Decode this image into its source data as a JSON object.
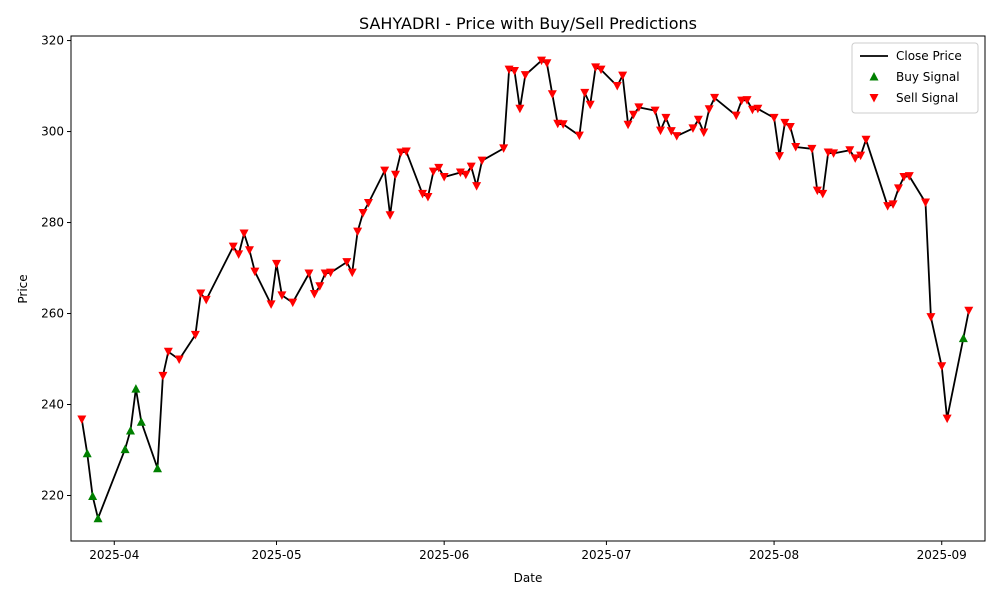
{
  "chart_data": {
    "type": "line",
    "title": "SAHYADRI - Price with Buy/Sell Predictions",
    "xlabel": "Date",
    "ylabel": "Price",
    "xlim": [
      "2025-03-24",
      "2025-09-09"
    ],
    "ylim": [
      210,
      321
    ],
    "x_ticks": [
      "2025-04-01",
      "2025-05-01",
      "2025-06-01",
      "2025-07-01",
      "2025-08-01",
      "2025-09-01"
    ],
    "x_tick_labels": [
      "2025-04",
      "2025-05",
      "2025-06",
      "2025-07",
      "2025-08",
      "2025-09"
    ],
    "y_ticks": [
      220,
      240,
      260,
      280,
      300,
      320
    ],
    "grid": false,
    "legend_position": "top-right",
    "legend": [
      "Close Price",
      "Buy Signal",
      "Sell Signal"
    ],
    "colors": {
      "line": "#000000",
      "buy": "#008000",
      "sell": "#ff0000"
    },
    "series": [
      {
        "name": "Close Price",
        "kind": "line",
        "points": [
          [
            "2025-03-26",
            236.7
          ],
          [
            "2025-03-27",
            229.3
          ],
          [
            "2025-03-28",
            219.9
          ],
          [
            "2025-03-29",
            215.0
          ],
          [
            "2025-04-03",
            230.2
          ],
          [
            "2025-04-04",
            234.3
          ],
          [
            "2025-04-05",
            243.5
          ],
          [
            "2025-04-06",
            236.2
          ],
          [
            "2025-04-09",
            226.0
          ],
          [
            "2025-04-10",
            246.3
          ],
          [
            "2025-04-11",
            251.6
          ],
          [
            "2025-04-13",
            249.9
          ],
          [
            "2025-04-16",
            255.3
          ],
          [
            "2025-04-17",
            264.4
          ],
          [
            "2025-04-18",
            263.0
          ],
          [
            "2025-04-23",
            274.7
          ],
          [
            "2025-04-24",
            273.0
          ],
          [
            "2025-04-25",
            277.6
          ],
          [
            "2025-04-26",
            273.9
          ],
          [
            "2025-04-27",
            269.2
          ],
          [
            "2025-04-30",
            262.0
          ],
          [
            "2025-05-01",
            270.9
          ],
          [
            "2025-05-02",
            264.0
          ],
          [
            "2025-05-04",
            262.4
          ],
          [
            "2025-05-07",
            268.8
          ],
          [
            "2025-05-08",
            264.3
          ],
          [
            "2025-05-09",
            266.0
          ],
          [
            "2025-05-10",
            268.8
          ],
          [
            "2025-05-11",
            269.0
          ],
          [
            "2025-05-14",
            271.3
          ],
          [
            "2025-05-15",
            269.0
          ],
          [
            "2025-05-16",
            278.0
          ],
          [
            "2025-05-17",
            282.1
          ],
          [
            "2025-05-18",
            284.3
          ],
          [
            "2025-05-21",
            291.4
          ],
          [
            "2025-05-22",
            281.6
          ],
          [
            "2025-05-23",
            290.5
          ],
          [
            "2025-05-24",
            295.4
          ],
          [
            "2025-05-25",
            295.6
          ],
          [
            "2025-05-28",
            286.3
          ],
          [
            "2025-05-29",
            285.6
          ],
          [
            "2025-05-30",
            291.2
          ],
          [
            "2025-05-31",
            292.0
          ],
          [
            "2025-06-01",
            290.0
          ],
          [
            "2025-06-04",
            291.0
          ],
          [
            "2025-06-05",
            290.5
          ],
          [
            "2025-06-06",
            292.3
          ],
          [
            "2025-06-07",
            288.0
          ],
          [
            "2025-06-08",
            293.6
          ],
          [
            "2025-06-12",
            296.3
          ],
          [
            "2025-06-13",
            313.6
          ],
          [
            "2025-06-14",
            313.3
          ],
          [
            "2025-06-15",
            305.0
          ],
          [
            "2025-06-16",
            312.4
          ],
          [
            "2025-06-19",
            315.6
          ],
          [
            "2025-06-20",
            315.0
          ],
          [
            "2025-06-21",
            308.2
          ],
          [
            "2025-06-22",
            301.7
          ],
          [
            "2025-06-23",
            301.6
          ],
          [
            "2025-06-26",
            299.1
          ],
          [
            "2025-06-27",
            308.5
          ],
          [
            "2025-06-28",
            305.9
          ],
          [
            "2025-06-29",
            314.1
          ],
          [
            "2025-06-30",
            313.6
          ],
          [
            "2025-07-03",
            310.0
          ],
          [
            "2025-07-04",
            312.3
          ],
          [
            "2025-07-05",
            301.5
          ],
          [
            "2025-07-06",
            303.7
          ],
          [
            "2025-07-07",
            305.3
          ],
          [
            "2025-07-10",
            304.6
          ],
          [
            "2025-07-11",
            300.2
          ],
          [
            "2025-07-12",
            303.0
          ],
          [
            "2025-07-13",
            300.1
          ],
          [
            "2025-07-14",
            299.0
          ],
          [
            "2025-07-17",
            300.7
          ],
          [
            "2025-07-18",
            302.6
          ],
          [
            "2025-07-19",
            299.8
          ],
          [
            "2025-07-20",
            304.9
          ],
          [
            "2025-07-21",
            307.4
          ],
          [
            "2025-07-25",
            303.5
          ],
          [
            "2025-07-26",
            306.8
          ],
          [
            "2025-07-27",
            306.9
          ],
          [
            "2025-07-28",
            304.8
          ],
          [
            "2025-07-29",
            305.0
          ],
          [
            "2025-08-01",
            303.0
          ],
          [
            "2025-08-02",
            294.6
          ],
          [
            "2025-08-03",
            301.9
          ],
          [
            "2025-08-04",
            301.0
          ],
          [
            "2025-08-05",
            296.6
          ],
          [
            "2025-08-08",
            296.2
          ],
          [
            "2025-08-09",
            287.0
          ],
          [
            "2025-08-10",
            286.3
          ],
          [
            "2025-08-11",
            295.4
          ],
          [
            "2025-08-12",
            295.2
          ],
          [
            "2025-08-15",
            295.9
          ],
          [
            "2025-08-16",
            294.1
          ],
          [
            "2025-08-17",
            294.7
          ],
          [
            "2025-08-18",
            298.2
          ],
          [
            "2025-08-22",
            283.6
          ],
          [
            "2025-08-23",
            284.0
          ],
          [
            "2025-08-24",
            287.5
          ],
          [
            "2025-08-25",
            290.0
          ],
          [
            "2025-08-26",
            290.2
          ],
          [
            "2025-08-29",
            284.4
          ],
          [
            "2025-08-30",
            259.2
          ],
          [
            "2025-09-01",
            248.4
          ],
          [
            "2025-09-02",
            236.9
          ],
          [
            "2025-09-05",
            254.6
          ],
          [
            "2025-09-06",
            260.6
          ]
        ]
      },
      {
        "name": "Buy Signal",
        "kind": "scatter",
        "marker": "triangle-up",
        "points": [
          [
            "2025-03-27",
            229.3
          ],
          [
            "2025-03-28",
            219.9
          ],
          [
            "2025-03-29",
            215.0
          ],
          [
            "2025-04-03",
            230.2
          ],
          [
            "2025-04-04",
            234.3
          ],
          [
            "2025-04-05",
            243.5
          ],
          [
            "2025-04-06",
            236.2
          ],
          [
            "2025-04-09",
            226.0
          ],
          [
            "2025-09-05",
            254.6
          ]
        ]
      },
      {
        "name": "Sell Signal",
        "kind": "scatter",
        "marker": "triangle-down",
        "points": [
          [
            "2025-03-26",
            236.7
          ],
          [
            "2025-04-10",
            246.3
          ],
          [
            "2025-04-11",
            251.6
          ],
          [
            "2025-04-13",
            249.9
          ],
          [
            "2025-04-16",
            255.3
          ],
          [
            "2025-04-17",
            264.4
          ],
          [
            "2025-04-18",
            263.0
          ],
          [
            "2025-04-23",
            274.7
          ],
          [
            "2025-04-24",
            273.0
          ],
          [
            "2025-04-25",
            277.6
          ],
          [
            "2025-04-26",
            273.9
          ],
          [
            "2025-04-27",
            269.2
          ],
          [
            "2025-04-30",
            262.0
          ],
          [
            "2025-05-01",
            270.9
          ],
          [
            "2025-05-02",
            264.0
          ],
          [
            "2025-05-04",
            262.4
          ],
          [
            "2025-05-07",
            268.8
          ],
          [
            "2025-05-08",
            264.3
          ],
          [
            "2025-05-09",
            266.0
          ],
          [
            "2025-05-10",
            268.8
          ],
          [
            "2025-05-11",
            269.0
          ],
          [
            "2025-05-14",
            271.3
          ],
          [
            "2025-05-15",
            269.0
          ],
          [
            "2025-05-16",
            278.0
          ],
          [
            "2025-05-17",
            282.1
          ],
          [
            "2025-05-18",
            284.3
          ],
          [
            "2025-05-21",
            291.4
          ],
          [
            "2025-05-22",
            281.6
          ],
          [
            "2025-05-23",
            290.5
          ],
          [
            "2025-05-24",
            295.4
          ],
          [
            "2025-05-25",
            295.6
          ],
          [
            "2025-05-28",
            286.3
          ],
          [
            "2025-05-29",
            285.6
          ],
          [
            "2025-05-30",
            291.2
          ],
          [
            "2025-05-31",
            292.0
          ],
          [
            "2025-06-01",
            290.0
          ],
          [
            "2025-06-04",
            291.0
          ],
          [
            "2025-06-05",
            290.5
          ],
          [
            "2025-06-06",
            292.3
          ],
          [
            "2025-06-07",
            288.0
          ],
          [
            "2025-06-08",
            293.6
          ],
          [
            "2025-06-12",
            296.3
          ],
          [
            "2025-06-13",
            313.6
          ],
          [
            "2025-06-14",
            313.3
          ],
          [
            "2025-06-15",
            305.0
          ],
          [
            "2025-06-16",
            312.4
          ],
          [
            "2025-06-19",
            315.6
          ],
          [
            "2025-06-20",
            315.0
          ],
          [
            "2025-06-21",
            308.2
          ],
          [
            "2025-06-22",
            301.7
          ],
          [
            "2025-06-23",
            301.6
          ],
          [
            "2025-06-26",
            299.1
          ],
          [
            "2025-06-27",
            308.5
          ],
          [
            "2025-06-28",
            305.9
          ],
          [
            "2025-06-29",
            314.1
          ],
          [
            "2025-06-30",
            313.6
          ],
          [
            "2025-07-03",
            310.0
          ],
          [
            "2025-07-04",
            312.3
          ],
          [
            "2025-07-05",
            301.5
          ],
          [
            "2025-07-06",
            303.7
          ],
          [
            "2025-07-07",
            305.3
          ],
          [
            "2025-07-10",
            304.6
          ],
          [
            "2025-07-11",
            300.2
          ],
          [
            "2025-07-12",
            303.0
          ],
          [
            "2025-07-13",
            300.1
          ],
          [
            "2025-07-14",
            299.0
          ],
          [
            "2025-07-17",
            300.7
          ],
          [
            "2025-07-18",
            302.6
          ],
          [
            "2025-07-19",
            299.8
          ],
          [
            "2025-07-20",
            304.9
          ],
          [
            "2025-07-21",
            307.4
          ],
          [
            "2025-07-25",
            303.5
          ],
          [
            "2025-07-26",
            306.8
          ],
          [
            "2025-07-27",
            306.9
          ],
          [
            "2025-07-28",
            304.8
          ],
          [
            "2025-07-29",
            305.0
          ],
          [
            "2025-08-01",
            303.0
          ],
          [
            "2025-08-02",
            294.6
          ],
          [
            "2025-08-03",
            301.9
          ],
          [
            "2025-08-04",
            301.0
          ],
          [
            "2025-08-05",
            296.6
          ],
          [
            "2025-08-08",
            296.2
          ],
          [
            "2025-08-09",
            287.0
          ],
          [
            "2025-08-10",
            286.3
          ],
          [
            "2025-08-11",
            295.4
          ],
          [
            "2025-08-12",
            295.2
          ],
          [
            "2025-08-15",
            295.9
          ],
          [
            "2025-08-16",
            294.1
          ],
          [
            "2025-08-17",
            294.7
          ],
          [
            "2025-08-18",
            298.2
          ],
          [
            "2025-08-22",
            283.6
          ],
          [
            "2025-08-23",
            284.0
          ],
          [
            "2025-08-24",
            287.5
          ],
          [
            "2025-08-25",
            290.0
          ],
          [
            "2025-08-26",
            290.2
          ],
          [
            "2025-08-29",
            284.4
          ],
          [
            "2025-08-30",
            259.2
          ],
          [
            "2025-09-01",
            248.4
          ],
          [
            "2025-09-02",
            236.9
          ],
          [
            "2025-09-06",
            260.6
          ]
        ]
      }
    ]
  }
}
